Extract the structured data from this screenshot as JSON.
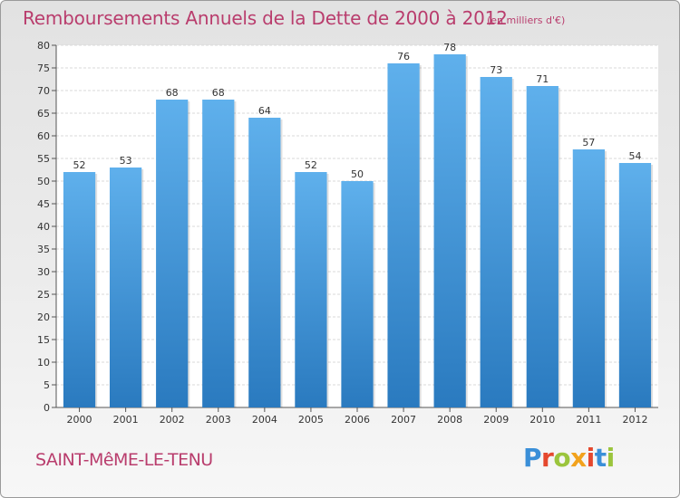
{
  "title": "Remboursements Annuels de la Dette de 2000 à 2012",
  "subtitle": "(en milliers d'€)",
  "location": "SAINT-MêME-LE-TENU",
  "logo": {
    "text": "Proxiti",
    "letter_colors": [
      "#3a8fd8",
      "#e5482e",
      "#9bc53d",
      "#f2a21c",
      "#e5482e",
      "#3a8fd8",
      "#9bc53d"
    ]
  },
  "colors": {
    "title": "#b93d6d",
    "bar_top": "#5fb0ec",
    "bar_bottom": "#2a7abf"
  },
  "chart_data": {
    "type": "bar",
    "categories": [
      "2000",
      "2001",
      "2002",
      "2003",
      "2004",
      "2005",
      "2006",
      "2007",
      "2008",
      "2009",
      "2010",
      "2011",
      "2012"
    ],
    "values": [
      52,
      53,
      68,
      68,
      64,
      52,
      50,
      76,
      78,
      73,
      71,
      57,
      54
    ],
    "title": "Remboursements Annuels de la Dette de 2000 à 2012",
    "subtitle": "(en milliers d'€)",
    "xlabel": "",
    "ylabel": "",
    "ylim": [
      0,
      80
    ],
    "yticks": [
      0,
      5,
      10,
      15,
      20,
      25,
      30,
      35,
      40,
      45,
      50,
      55,
      60,
      65,
      70,
      75,
      80
    ],
    "grid": true,
    "data_labels": true,
    "legend": "none"
  }
}
